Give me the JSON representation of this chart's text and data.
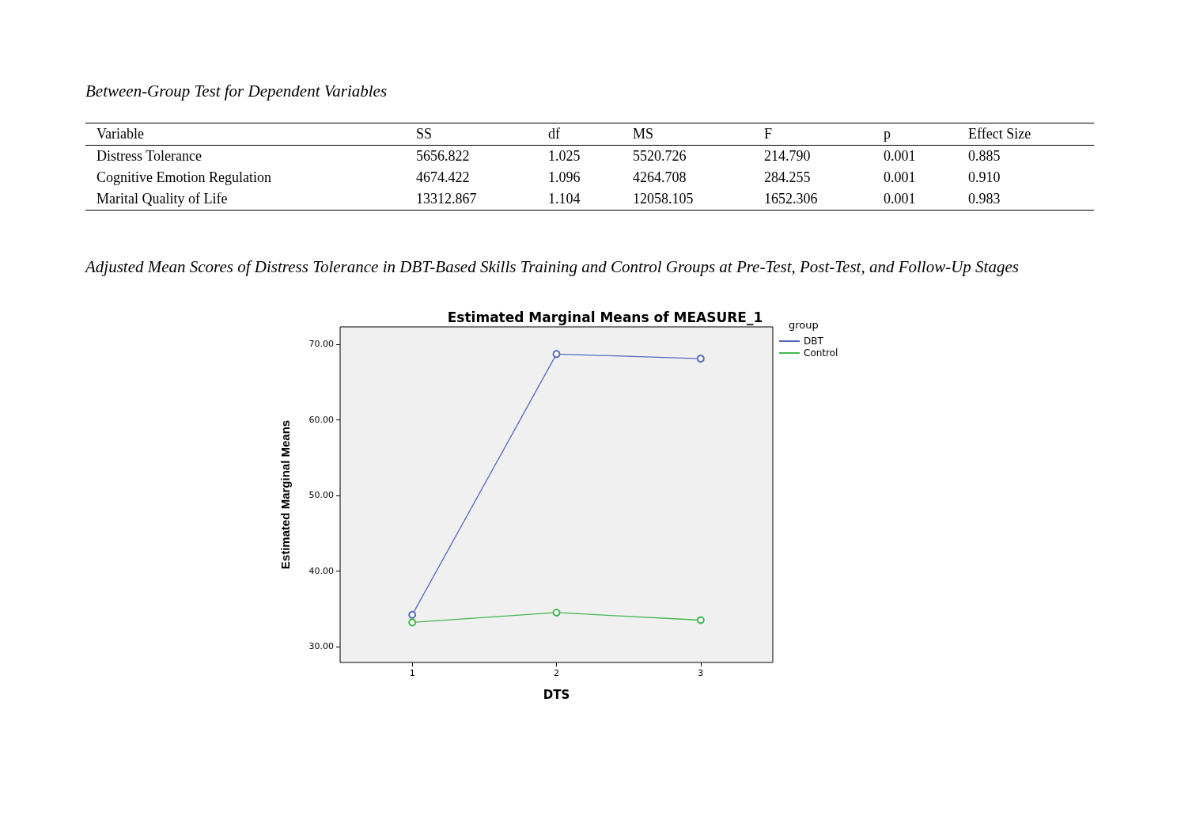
{
  "chart_data": [
    {
      "type": "other",
      "title": "Between-Group Test for Dependent Variables",
      "categories": [
        "Variable",
        "SS",
        "df",
        "MS",
        "F",
        "p",
        "Effect Size"
      ],
      "annotations": [
        "Distress Tolerance",
        "5656.822",
        "1.025",
        "5520.726",
        "214.790",
        "0.001",
        "0.885",
        "Cognitive Emotion Regulation",
        "4674.422",
        "1.096",
        "4264.708",
        "284.255",
        "0.001",
        "0.910",
        "Marital Quality of Life",
        "13312.867",
        "1.104",
        "12058.105",
        "1652.306",
        "0.001",
        "0.983"
      ]
    },
    {
      "type": "line",
      "title": "Adjusted Mean Scores of Distress Tolerance in DBT-Based Skills Training and Control Groups at Pre-Test, Post-Test, and Follow-Up Stages",
      "subtitle": "Estimated Marginal Means of MEASURE_1",
      "xlabel": "DTS",
      "ylabel": "Estimated Marginal Means",
      "legend_title": "group",
      "legend": "right",
      "grid": false,
      "marker": "circle",
      "line_style": "solid",
      "categories": [
        "1",
        "2",
        "3"
      ],
      "ylim": [
        27.9,
        72.3
      ],
      "yticks": [
        {
          "value": 30,
          "label": "30.00"
        },
        {
          "value": 40,
          "label": "40.00"
        },
        {
          "value": 50,
          "label": "50.00"
        },
        {
          "value": 60,
          "label": "60.00"
        },
        {
          "value": 70,
          "label": "70.00"
        }
      ],
      "series": [
        {
          "name": "DBT",
          "color": "#5468c0",
          "values": [
            34.2,
            68.7,
            68.1
          ]
        },
        {
          "name": "Control",
          "color": "#40b850",
          "values": [
            33.2,
            34.5,
            33.5
          ]
        }
      ]
    }
  ]
}
